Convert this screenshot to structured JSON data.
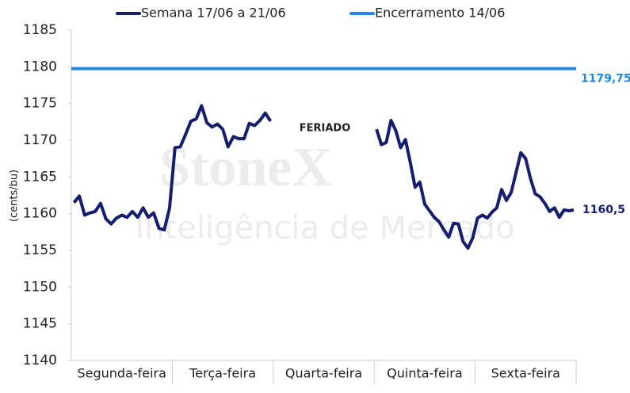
{
  "chart_data": {
    "type": "line",
    "categories": [
      "Segunda-feira",
      "Terça-feira",
      "Quarta-feira",
      "Quinta-feira",
      "Sexta-feira"
    ],
    "series": [
      {
        "name": "Semana 17/06 a 21/06",
        "color": "#151d6e",
        "values": [
          [
            1161.5,
            1162.4,
            1159.8,
            1160.1,
            1160.3,
            1161.4,
            1159.3,
            1158.6,
            1159.4,
            1159.8,
            1159.5,
            1160.3,
            1159.5,
            1160.8,
            1159.5,
            1160.1,
            1158.0,
            1157.8,
            1160.8
          ],
          [
            1169.0,
            1169.1,
            1170.8,
            1172.6,
            1172.9,
            1174.7,
            1172.4,
            1171.8,
            1172.2,
            1171.5,
            1169.1,
            1170.5,
            1170.2,
            1170.2,
            1172.3,
            1172.0,
            1172.7,
            1173.7,
            1172.6
          ],
          null,
          [
            1171.5,
            1169.4,
            1169.7,
            1172.7,
            1171.3,
            1169.0,
            1170.1,
            1167.0,
            1163.6,
            1164.3,
            1161.3,
            1160.4,
            1159.5,
            1158.9,
            1157.8,
            1156.8,
            1158.7,
            1158.6,
            1156.2,
            1155.3,
            1156.7
          ],
          [
            1159.4,
            1159.8,
            1159.4,
            1160.2,
            1160.8,
            1163.3,
            1161.8,
            1162.9,
            1165.6,
            1168.3,
            1167.5,
            1164.8,
            1162.7,
            1162.3,
            1161.4,
            1160.3,
            1160.8,
            1159.5,
            1160.5,
            1160.4,
            1160.5
          ]
        ],
        "value_label": "1160,5"
      },
      {
        "name": "Encerramento 14/06",
        "color": "#2088e6",
        "value": 1179.75,
        "value_label": "1179,75"
      }
    ],
    "annotation": "FERIADO",
    "y_label": "(cents/bu)",
    "watermark": [
      "StoneX",
      "Inteligência de Mercado"
    ],
    "ylim": [
      1140,
      1185
    ],
    "yticks": [
      1140,
      1145,
      1150,
      1155,
      1160,
      1165,
      1170,
      1175,
      1180,
      1185
    ],
    "grid": false
  }
}
